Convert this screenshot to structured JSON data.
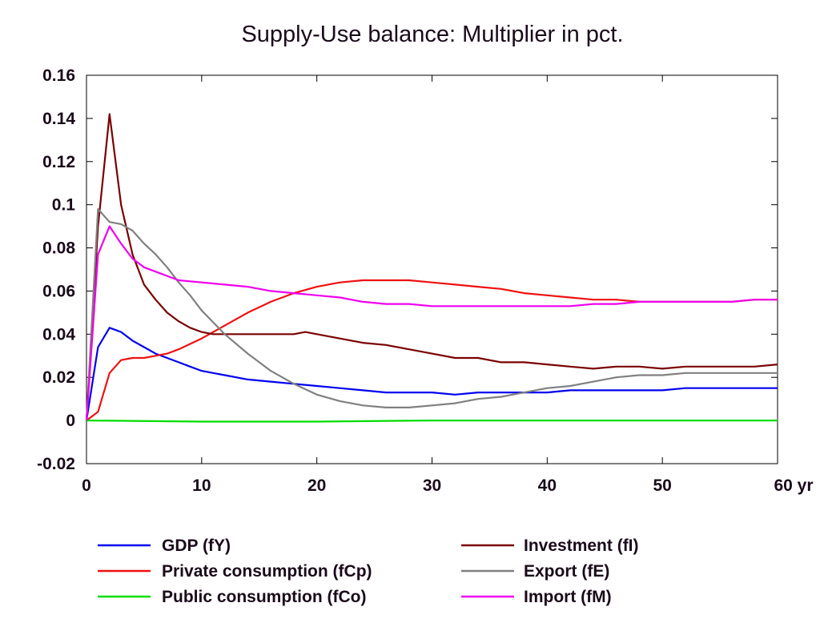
{
  "chart_data": {
    "type": "line",
    "title": "Supply-Use balance: Multiplier in pct.",
    "x_unit_label": "yr",
    "xlim": [
      0,
      60
    ],
    "ylim": [
      -0.02,
      0.16
    ],
    "x_ticks": [
      0,
      10,
      20,
      30,
      40,
      50,
      60
    ],
    "x_tick_labels": [
      "0",
      "10",
      "20",
      "30",
      "40",
      "50",
      "60"
    ],
    "y_ticks": [
      -0.02,
      0,
      0.02,
      0.04,
      0.06,
      0.08,
      0.1,
      0.12,
      0.14,
      0.16
    ],
    "y_tick_labels": [
      "-0.02",
      "0",
      "0.02",
      "0.04",
      "0.06",
      "0.08",
      "0.1",
      "0.12",
      "0.14",
      "0.16"
    ],
    "grid": false,
    "legend_position": "bottom",
    "series": [
      {
        "name": "GDP (fY)",
        "color": "#0000ee",
        "points": [
          [
            0,
            0
          ],
          [
            1,
            0.034
          ],
          [
            2,
            0.043
          ],
          [
            3,
            0.041
          ],
          [
            4,
            0.037
          ],
          [
            5,
            0.034
          ],
          [
            6,
            0.031
          ],
          [
            7,
            0.029
          ],
          [
            8,
            0.027
          ],
          [
            9,
            0.025
          ],
          [
            10,
            0.023
          ],
          [
            11,
            0.022
          ],
          [
            12,
            0.021
          ],
          [
            14,
            0.019
          ],
          [
            16,
            0.018
          ],
          [
            18,
            0.017
          ],
          [
            20,
            0.016
          ],
          [
            22,
            0.015
          ],
          [
            24,
            0.014
          ],
          [
            26,
            0.013
          ],
          [
            28,
            0.013
          ],
          [
            30,
            0.013
          ],
          [
            32,
            0.012
          ],
          [
            34,
            0.013
          ],
          [
            36,
            0.013
          ],
          [
            38,
            0.013
          ],
          [
            40,
            0.013
          ],
          [
            42,
            0.014
          ],
          [
            44,
            0.014
          ],
          [
            46,
            0.014
          ],
          [
            48,
            0.014
          ],
          [
            50,
            0.014
          ],
          [
            52,
            0.015
          ],
          [
            54,
            0.015
          ],
          [
            56,
            0.015
          ],
          [
            58,
            0.015
          ],
          [
            60,
            0.015
          ]
        ]
      },
      {
        "name": "Private consumption (fCp)",
        "color": "#ee1111",
        "points": [
          [
            0,
            0
          ],
          [
            1,
            0.004
          ],
          [
            2,
            0.022
          ],
          [
            3,
            0.028
          ],
          [
            4,
            0.029
          ],
          [
            5,
            0.029
          ],
          [
            6,
            0.03
          ],
          [
            7,
            0.031
          ],
          [
            8,
            0.033
          ],
          [
            10,
            0.038
          ],
          [
            12,
            0.044
          ],
          [
            14,
            0.05
          ],
          [
            16,
            0.055
          ],
          [
            18,
            0.059
          ],
          [
            20,
            0.062
          ],
          [
            22,
            0.064
          ],
          [
            24,
            0.065
          ],
          [
            26,
            0.065
          ],
          [
            28,
            0.065
          ],
          [
            30,
            0.064
          ],
          [
            32,
            0.063
          ],
          [
            34,
            0.062
          ],
          [
            36,
            0.061
          ],
          [
            38,
            0.059
          ],
          [
            40,
            0.058
          ],
          [
            42,
            0.057
          ],
          [
            44,
            0.056
          ],
          [
            46,
            0.056
          ],
          [
            48,
            0.055
          ],
          [
            50,
            0.055
          ],
          [
            52,
            0.055
          ],
          [
            54,
            0.055
          ],
          [
            56,
            0.055
          ],
          [
            58,
            0.056
          ],
          [
            60,
            0.056
          ]
        ]
      },
      {
        "name": "Public consumption (fCo)",
        "color": "#00dd00",
        "points": [
          [
            0,
            0
          ],
          [
            10,
            -0.0005
          ],
          [
            20,
            -0.0005
          ],
          [
            30,
            0
          ],
          [
            40,
            0
          ],
          [
            50,
            0
          ],
          [
            60,
            0
          ]
        ]
      },
      {
        "name": "Investment (fI)",
        "color": "#7a0000",
        "points": [
          [
            0,
            0
          ],
          [
            1,
            0.09
          ],
          [
            2,
            0.142
          ],
          [
            3,
            0.1
          ],
          [
            4,
            0.077
          ],
          [
            5,
            0.063
          ],
          [
            6,
            0.056
          ],
          [
            7,
            0.05
          ],
          [
            8,
            0.046
          ],
          [
            9,
            0.043
          ],
          [
            10,
            0.041
          ],
          [
            11,
            0.04
          ],
          [
            12,
            0.04
          ],
          [
            14,
            0.04
          ],
          [
            16,
            0.04
          ],
          [
            18,
            0.04
          ],
          [
            19,
            0.041
          ],
          [
            20,
            0.04
          ],
          [
            22,
            0.038
          ],
          [
            24,
            0.036
          ],
          [
            26,
            0.035
          ],
          [
            28,
            0.033
          ],
          [
            30,
            0.031
          ],
          [
            32,
            0.029
          ],
          [
            34,
            0.029
          ],
          [
            36,
            0.027
          ],
          [
            38,
            0.027
          ],
          [
            40,
            0.026
          ],
          [
            42,
            0.025
          ],
          [
            44,
            0.024
          ],
          [
            46,
            0.025
          ],
          [
            48,
            0.025
          ],
          [
            50,
            0.024
          ],
          [
            52,
            0.025
          ],
          [
            54,
            0.025
          ],
          [
            56,
            0.025
          ],
          [
            58,
            0.025
          ],
          [
            60,
            0.026
          ]
        ]
      },
      {
        "name": "Export (fE)",
        "color": "#808080",
        "points": [
          [
            0,
            0
          ],
          [
            1,
            0.098
          ],
          [
            2,
            0.092
          ],
          [
            3,
            0.091
          ],
          [
            4,
            0.088
          ],
          [
            5,
            0.082
          ],
          [
            6,
            0.077
          ],
          [
            7,
            0.071
          ],
          [
            8,
            0.064
          ],
          [
            9,
            0.058
          ],
          [
            10,
            0.051
          ],
          [
            12,
            0.04
          ],
          [
            14,
            0.031
          ],
          [
            16,
            0.023
          ],
          [
            18,
            0.017
          ],
          [
            20,
            0.012
          ],
          [
            22,
            0.009
          ],
          [
            24,
            0.007
          ],
          [
            26,
            0.006
          ],
          [
            28,
            0.006
          ],
          [
            30,
            0.007
          ],
          [
            32,
            0.008
          ],
          [
            34,
            0.01
          ],
          [
            36,
            0.011
          ],
          [
            38,
            0.013
          ],
          [
            40,
            0.015
          ],
          [
            42,
            0.016
          ],
          [
            44,
            0.018
          ],
          [
            46,
            0.02
          ],
          [
            48,
            0.021
          ],
          [
            50,
            0.021
          ],
          [
            52,
            0.022
          ],
          [
            54,
            0.022
          ],
          [
            56,
            0.022
          ],
          [
            58,
            0.022
          ],
          [
            60,
            0.022
          ]
        ]
      },
      {
        "name": "Import (fM)",
        "color": "#ee00ee",
        "points": [
          [
            0,
            0
          ],
          [
            1,
            0.077
          ],
          [
            2,
            0.09
          ],
          [
            3,
            0.082
          ],
          [
            4,
            0.075
          ],
          [
            5,
            0.071
          ],
          [
            6,
            0.069
          ],
          [
            7,
            0.067
          ],
          [
            8,
            0.065
          ],
          [
            10,
            0.064
          ],
          [
            12,
            0.063
          ],
          [
            14,
            0.062
          ],
          [
            16,
            0.06
          ],
          [
            18,
            0.059
          ],
          [
            20,
            0.058
          ],
          [
            22,
            0.057
          ],
          [
            24,
            0.055
          ],
          [
            26,
            0.054
          ],
          [
            28,
            0.054
          ],
          [
            30,
            0.053
          ],
          [
            32,
            0.053
          ],
          [
            34,
            0.053
          ],
          [
            36,
            0.053
          ],
          [
            38,
            0.053
          ],
          [
            40,
            0.053
          ],
          [
            42,
            0.053
          ],
          [
            44,
            0.054
          ],
          [
            46,
            0.054
          ],
          [
            48,
            0.055
          ],
          [
            50,
            0.055
          ],
          [
            52,
            0.055
          ],
          [
            54,
            0.055
          ],
          [
            56,
            0.055
          ],
          [
            58,
            0.056
          ],
          [
            60,
            0.056
          ]
        ]
      }
    ]
  }
}
